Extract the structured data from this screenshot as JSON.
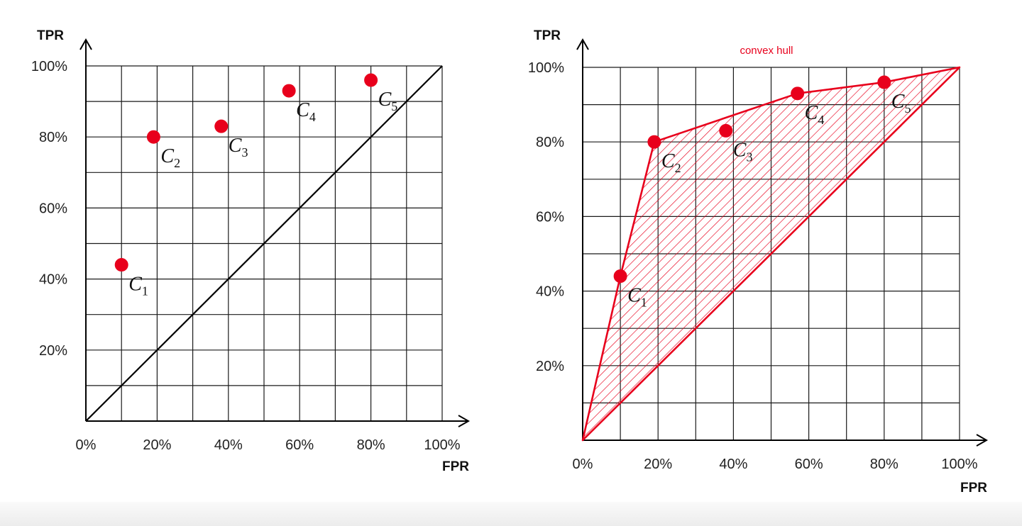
{
  "chart_data": [
    {
      "type": "scatter",
      "title": "",
      "xlabel": "FPR",
      "ylabel": "TPR",
      "xlim": [
        0,
        100
      ],
      "ylim": [
        0,
        100
      ],
      "grid": true,
      "x_ticks": [
        "0%",
        "20%",
        "40%",
        "60%",
        "80%",
        "100%"
      ],
      "y_ticks": [
        "20%",
        "40%",
        "60%",
        "80%",
        "100%"
      ],
      "points": [
        {
          "label": "C",
          "sub": "1",
          "x": 10,
          "y": 44
        },
        {
          "label": "C",
          "sub": "2",
          "x": 19,
          "y": 80
        },
        {
          "label": "C",
          "sub": "3",
          "x": 38,
          "y": 83
        },
        {
          "label": "C",
          "sub": "4",
          "x": 57,
          "y": 93
        },
        {
          "label": "C",
          "sub": "5",
          "x": 80,
          "y": 96
        }
      ],
      "diagonal": [
        [
          0,
          0
        ],
        [
          100,
          100
        ]
      ],
      "point_color": "#e8001c",
      "line_color": "#000000"
    },
    {
      "type": "scatter",
      "title": "",
      "xlabel": "FPR",
      "ylabel": "TPR",
      "xlim": [
        0,
        100
      ],
      "ylim": [
        0,
        100
      ],
      "grid": true,
      "x_ticks": [
        "0%",
        "20%",
        "40%",
        "60%",
        "80%",
        "100%"
      ],
      "y_ticks": [
        "20%",
        "40%",
        "60%",
        "80%",
        "100%"
      ],
      "points": [
        {
          "label": "C",
          "sub": "1",
          "x": 10,
          "y": 44
        },
        {
          "label": "C",
          "sub": "2",
          "x": 19,
          "y": 80
        },
        {
          "label": "C",
          "sub": "3",
          "x": 38,
          "y": 83
        },
        {
          "label": "C",
          "sub": "4",
          "x": 57,
          "y": 93
        },
        {
          "label": "C",
          "sub": "5",
          "x": 80,
          "y": 96
        }
      ],
      "hull": [
        [
          0,
          0
        ],
        [
          10,
          44
        ],
        [
          19,
          80
        ],
        [
          57,
          93
        ],
        [
          80,
          96
        ],
        [
          100,
          100
        ]
      ],
      "hull_fill": "hatched",
      "annotation": "convex hull",
      "point_color": "#e8001c",
      "hull_color": "#e8001c"
    }
  ]
}
